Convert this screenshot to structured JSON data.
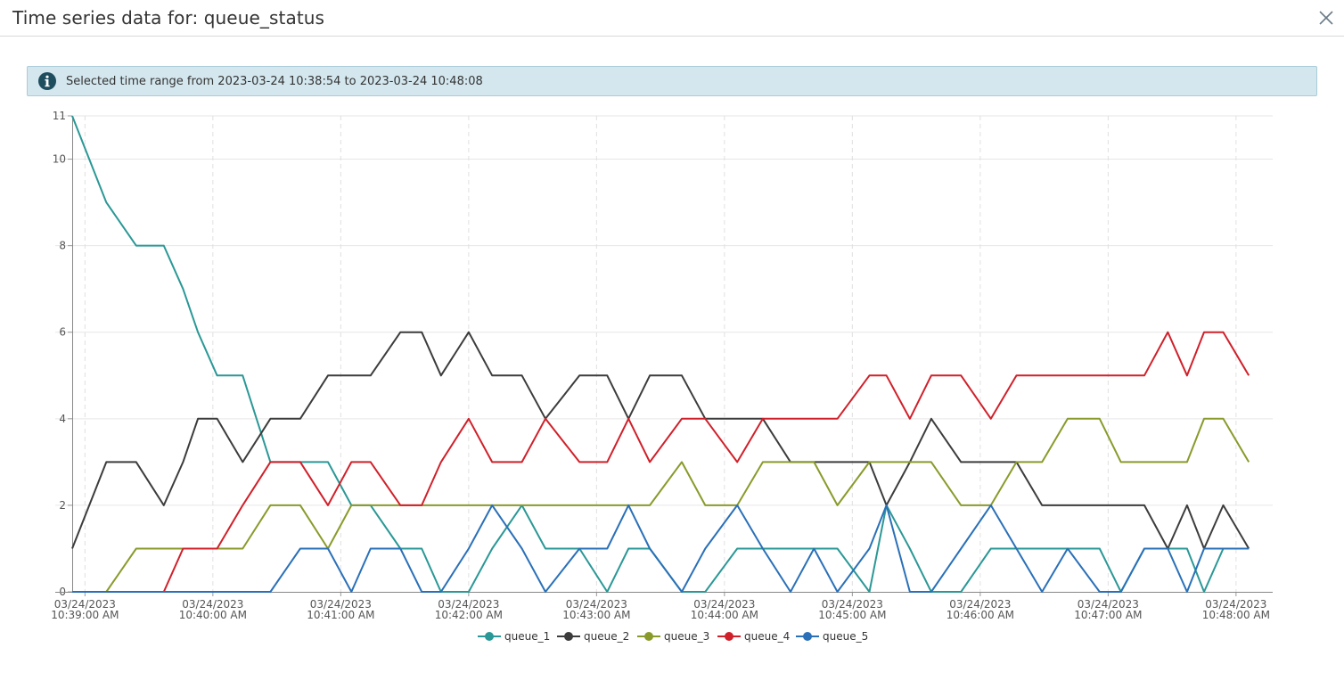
{
  "window": {
    "title": "Time series data for: queue_status"
  },
  "info": {
    "text": "Selected time range from 2023-03-24 10:38:54 to 2023-03-24 10:48:08",
    "icon": "info-icon"
  },
  "close": {
    "icon": "close-icon"
  },
  "chart_data": {
    "type": "line",
    "x_start": "10:38:54",
    "x_end": "10:48:08",
    "ylim": [
      0,
      11
    ],
    "y_ticks": [
      {
        "value": 0,
        "label": "0"
      },
      {
        "value": 2,
        "label": "2"
      },
      {
        "value": 4,
        "label": "4"
      },
      {
        "value": 6,
        "label": "6"
      },
      {
        "value": 8,
        "label": "8"
      },
      {
        "value": 10,
        "label": "10"
      },
      {
        "value": 11,
        "label": "11"
      }
    ],
    "x_ticks": [
      {
        "time": "10:39:00",
        "date": "03/24/2023",
        "label": "10:39:00 AM"
      },
      {
        "time": "10:40:00",
        "date": "03/24/2023",
        "label": "10:40:00 AM"
      },
      {
        "time": "10:41:00",
        "date": "03/24/2023",
        "label": "10:41:00 AM"
      },
      {
        "time": "10:42:00",
        "date": "03/24/2023",
        "label": "10:42:00 AM"
      },
      {
        "time": "10:43:00",
        "date": "03/24/2023",
        "label": "10:43:00 AM"
      },
      {
        "time": "10:44:00",
        "date": "03/24/2023",
        "label": "10:44:00 AM"
      },
      {
        "time": "10:45:00",
        "date": "03/24/2023",
        "label": "10:45:00 AM"
      },
      {
        "time": "10:46:00",
        "date": "03/24/2023",
        "label": "10:46:00 AM"
      },
      {
        "time": "10:47:00",
        "date": "03/24/2023",
        "label": "10:47:00 AM"
      },
      {
        "time": "10:48:00",
        "date": "03/24/2023",
        "label": "10:48:00 AM"
      }
    ],
    "grid": true,
    "legend_position": "bottom-center",
    "x": [
      "10:38:54",
      "10:39:10",
      "10:39:24",
      "10:39:37",
      "10:39:46",
      "10:39:53",
      "10:40:02",
      "10:40:14",
      "10:40:27",
      "10:40:41",
      "10:40:54",
      "10:41:05",
      "10:41:14",
      "10:41:28",
      "10:41:38",
      "10:41:47",
      "10:42:00",
      "10:42:11",
      "10:42:25",
      "10:42:36",
      "10:42:52",
      "10:43:05",
      "10:43:15",
      "10:43:25",
      "10:43:40",
      "10:43:51",
      "10:44:06",
      "10:44:18",
      "10:44:31",
      "10:44:42",
      "10:44:53",
      "10:45:08",
      "10:45:16",
      "10:45:27",
      "10:45:37",
      "10:45:51",
      "10:46:05",
      "10:46:17",
      "10:46:29",
      "10:46:41",
      "10:46:56",
      "10:47:06",
      "10:47:17",
      "10:47:28",
      "10:47:37",
      "10:47:45",
      "10:47:54",
      "10:48:06"
    ],
    "series": [
      {
        "name": "queue_1",
        "color": "#2a9896",
        "values": [
          11,
          9,
          8,
          8,
          7,
          6,
          5,
          5,
          3,
          3,
          3,
          2,
          2,
          1,
          1,
          0,
          0,
          1,
          2,
          1,
          1,
          0,
          1,
          1,
          0,
          0,
          1,
          1,
          1,
          1,
          1,
          0,
          2,
          1,
          0,
          0,
          1,
          1,
          1,
          1,
          1,
          0,
          1,
          1,
          1,
          0,
          1,
          1
        ]
      },
      {
        "name": "queue_2",
        "color": "#3c3c3c",
        "values": [
          1,
          3,
          3,
          2,
          3,
          4,
          4,
          3,
          4,
          4,
          5,
          5,
          5,
          6,
          6,
          5,
          6,
          5,
          5,
          4,
          5,
          5,
          4,
          5,
          5,
          4,
          4,
          4,
          3,
          3,
          3,
          3,
          2,
          3,
          4,
          3,
          3,
          3,
          2,
          2,
          2,
          2,
          2,
          1,
          2,
          1,
          2,
          1
        ]
      },
      {
        "name": "queue_3",
        "color": "#8a9a2a",
        "values": [
          0,
          0,
          1,
          1,
          1,
          1,
          1,
          1,
          2,
          2,
          1,
          2,
          2,
          2,
          2,
          2,
          2,
          2,
          2,
          2,
          2,
          2,
          2,
          2,
          3,
          2,
          2,
          3,
          3,
          3,
          2,
          3,
          3,
          3,
          3,
          2,
          2,
          3,
          3,
          4,
          4,
          3,
          3,
          3,
          3,
          4,
          4,
          3
        ]
      },
      {
        "name": "queue_4",
        "color": "#d0202a",
        "values": [
          0,
          0,
          0,
          0,
          1,
          1,
          1,
          2,
          3,
          3,
          2,
          3,
          3,
          2,
          2,
          3,
          4,
          3,
          3,
          4,
          3,
          3,
          4,
          3,
          4,
          4,
          3,
          4,
          4,
          4,
          4,
          5,
          5,
          4,
          5,
          5,
          4,
          5,
          5,
          5,
          5,
          5,
          5,
          6,
          5,
          6,
          6,
          5
        ]
      },
      {
        "name": "queue_5",
        "color": "#2a70b8",
        "values": [
          0,
          0,
          0,
          0,
          0,
          0,
          0,
          0,
          0,
          1,
          1,
          0,
          1,
          1,
          0,
          0,
          1,
          2,
          1,
          0,
          1,
          1,
          2,
          1,
          0,
          1,
          2,
          1,
          0,
          1,
          0,
          1,
          2,
          0,
          0,
          1,
          2,
          1,
          0,
          1,
          0,
          0,
          1,
          1,
          0,
          1,
          1,
          1
        ]
      }
    ]
  }
}
